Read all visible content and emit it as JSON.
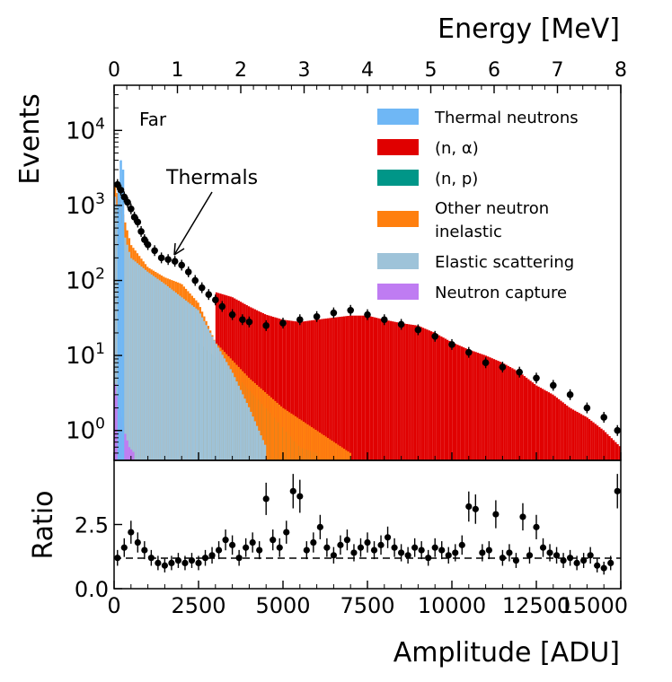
{
  "chart_data": [
    {
      "type": "histogram",
      "panel": "main",
      "annotation_text": "Far",
      "callout_label": "Thermals",
      "xlabel_top": "Energy [MeV]",
      "ylabel": "Events",
      "y_scale": "log",
      "ylim": [
        0.4,
        40000
      ],
      "x_unit_range": [
        0,
        15000
      ],
      "top_axis_range": [
        0,
        8
      ],
      "top_ticks": [
        "0",
        "1",
        "2",
        "3",
        "4",
        "5",
        "6",
        "7",
        "8"
      ],
      "y_ticks": [
        {
          "base": "10",
          "exp": "0",
          "value": 1
        },
        {
          "base": "10",
          "exp": "1",
          "value": 10
        },
        {
          "base": "10",
          "exp": "2",
          "value": 100
        },
        {
          "base": "10",
          "exp": "3",
          "value": 1000
        },
        {
          "base": "10",
          "exp": "4",
          "value": 10000
        }
      ],
      "legend_position": "top-right",
      "series": [
        {
          "name": "Thermal neutrons",
          "color": "#6fb7f5",
          "start": 100,
          "end": 300,
          "values": [
            1800,
            4000,
            3000
          ]
        },
        {
          "name": "(n, α)",
          "color": "#e00000",
          "x": [
            3000,
            3500,
            4000,
            4500,
            5000,
            5500,
            6000,
            6500,
            7000,
            7500,
            8000,
            8500,
            9000,
            9500,
            10000,
            10500,
            11000,
            11500,
            12000,
            12500,
            13000,
            13500,
            14000,
            14500,
            15000
          ],
          "values": [
            70,
            60,
            45,
            35,
            30,
            28,
            30,
            32,
            34,
            34,
            30,
            27,
            25,
            20,
            15,
            12,
            10,
            8,
            6,
            4,
            3,
            2,
            1.5,
            1,
            0.6
          ]
        },
        {
          "name": "(n, p)",
          "color": "#009688",
          "x": [
            2500,
            3500,
            4500,
            5500,
            6000
          ],
          "values": [
            15,
            6,
            2,
            0.6,
            0.5
          ]
        },
        {
          "name": "Other neutron inelastic",
          "color": "#ff7f0e",
          "x": [
            0,
            200,
            500,
            1000,
            1500,
            2000,
            2500,
            3000,
            4000,
            5000,
            6000,
            7000
          ],
          "values": [
            2000,
            1000,
            300,
            150,
            110,
            90,
            50,
            15,
            5,
            2,
            1,
            0.5
          ]
        },
        {
          "name": "Elastic scattering",
          "color": "#9ec3d9",
          "x": [
            0,
            200,
            500,
            1000,
            1500,
            2000,
            2500,
            3000,
            3500,
            4000,
            4500
          ],
          "values": [
            1500,
            600,
            200,
            130,
            90,
            60,
            40,
            15,
            6,
            2,
            0.6
          ]
        },
        {
          "name": "Neutron capture",
          "color": "#bf7cf2",
          "x": [
            0,
            150,
            300,
            450,
            600
          ],
          "values": [
            5,
            2,
            1,
            0.6,
            0.5
          ]
        }
      ],
      "points": {
        "color": "#000000",
        "x": [
          100,
          200,
          300,
          400,
          500,
          600,
          700,
          800,
          900,
          1000,
          1200,
          1400,
          1600,
          1800,
          2000,
          2200,
          2400,
          2600,
          2800,
          3000,
          3200,
          3500,
          3800,
          4000,
          4500,
          5000,
          5500,
          6000,
          6500,
          7000,
          7500,
          8000,
          8500,
          9000,
          9500,
          10000,
          10500,
          11000,
          11500,
          12000,
          12500,
          13000,
          13500,
          14000,
          14500,
          14900
        ],
        "y": [
          1900,
          1600,
          1300,
          1100,
          900,
          700,
          600,
          450,
          350,
          300,
          250,
          200,
          190,
          180,
          160,
          130,
          100,
          80,
          65,
          55,
          45,
          35,
          30,
          28,
          25,
          27,
          30,
          33,
          37,
          40,
          35,
          30,
          26,
          22,
          18,
          14,
          11,
          8,
          7,
          6,
          5,
          4,
          3,
          2,
          1.5,
          1
        ]
      }
    },
    {
      "type": "scatter",
      "panel": "ratio",
      "xlabel": "Amplitude [ADU]",
      "ylabel": "Ratio",
      "ylim": [
        0,
        5
      ],
      "xlim": [
        0,
        15000
      ],
      "reference_line": 1.0,
      "x_ticks": [
        "0",
        "2500",
        "5000",
        "7500",
        "10000",
        "12500",
        "15000"
      ],
      "x_tick_values": [
        0,
        2500,
        5000,
        7500,
        10000,
        12500,
        15000
      ],
      "y_ticks": [
        "0.0",
        "2.5"
      ],
      "y_tick_values": [
        0,
        2.5
      ],
      "points": {
        "x": [
          100,
          300,
          500,
          700,
          900,
          1100,
          1300,
          1500,
          1700,
          1900,
          2100,
          2300,
          2500,
          2700,
          2900,
          3100,
          3300,
          3500,
          3700,
          3900,
          4100,
          4300,
          4500,
          4700,
          4900,
          5100,
          5300,
          5500,
          5700,
          5900,
          6100,
          6300,
          6500,
          6700,
          6900,
          7100,
          7300,
          7500,
          7700,
          7900,
          8100,
          8300,
          8500,
          8700,
          8900,
          9100,
          9300,
          9500,
          9700,
          9900,
          10100,
          10300,
          10500,
          10700,
          10900,
          11100,
          11300,
          11500,
          11700,
          11900,
          12100,
          12300,
          12500,
          12700,
          12900,
          13100,
          13300,
          13500,
          13700,
          13900,
          14100,
          14300,
          14500,
          14700,
          14900
        ],
        "y": [
          1.2,
          1.6,
          2.2,
          1.8,
          1.5,
          1.2,
          1.0,
          0.9,
          1.0,
          1.1,
          1.0,
          1.1,
          1.0,
          1.2,
          1.3,
          1.5,
          1.9,
          1.7,
          1.2,
          1.6,
          1.8,
          1.5,
          3.5,
          1.9,
          1.6,
          2.2,
          3.8,
          3.6,
          1.5,
          1.8,
          2.4,
          1.6,
          1.3,
          1.7,
          1.9,
          1.4,
          1.6,
          1.8,
          1.5,
          1.7,
          2.0,
          1.6,
          1.4,
          1.3,
          1.6,
          1.5,
          1.2,
          1.6,
          1.5,
          1.3,
          1.4,
          1.7,
          3.2,
          3.1,
          1.4,
          1.5,
          2.9,
          1.2,
          1.4,
          1.1,
          2.8,
          1.3,
          2.4,
          1.6,
          1.4,
          1.3,
          1.1,
          1.2,
          1.0,
          1.1,
          1.3,
          0.9,
          0.8,
          1.0,
          3.8
        ]
      }
    }
  ]
}
